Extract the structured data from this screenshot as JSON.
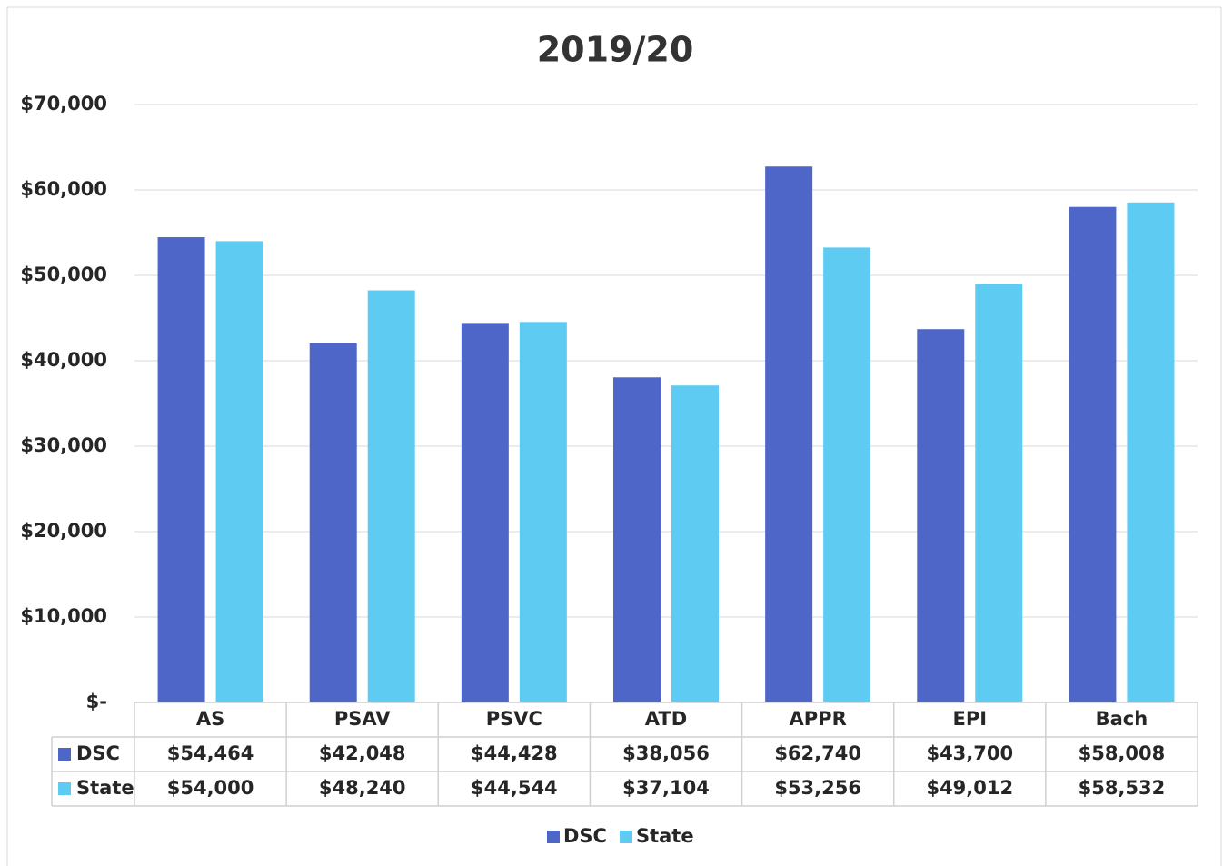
{
  "chart_data": {
    "type": "bar",
    "title": "2019/20",
    "categories": [
      "AS",
      "PSAV",
      "PSVC",
      "ATD",
      "APPR",
      "EPI",
      "Bach"
    ],
    "series": [
      {
        "name": "DSC",
        "color": "#4f66c9",
        "values": [
          54464,
          42048,
          44428,
          38056,
          62740,
          43700,
          58008
        ],
        "value_labels": [
          "$54,464",
          "$42,048",
          "$44,428",
          "$38,056",
          "$62,740",
          "$43,700",
          "$58,008"
        ]
      },
      {
        "name": "State",
        "color": "#5ecbf2",
        "values": [
          54000,
          48240,
          44544,
          37104,
          53256,
          49012,
          58532
        ],
        "value_labels": [
          "$54,000",
          "$48,240",
          "$44,544",
          "$37,104",
          "$53,256",
          "$49,012",
          "$58,532"
        ]
      }
    ],
    "ylim": [
      0,
      70000
    ],
    "yticks": [
      {
        "value": 0,
        "label": "$-"
      },
      {
        "value": 10000,
        "label": "$10,000"
      },
      {
        "value": 20000,
        "label": "$20,000"
      },
      {
        "value": 30000,
        "label": "$30,000"
      },
      {
        "value": 40000,
        "label": "$40,000"
      },
      {
        "value": 50000,
        "label": "$50,000"
      },
      {
        "value": 60000,
        "label": "$60,000"
      },
      {
        "value": 70000,
        "label": "$70,000"
      }
    ],
    "grid": true,
    "legend": "bottom"
  }
}
